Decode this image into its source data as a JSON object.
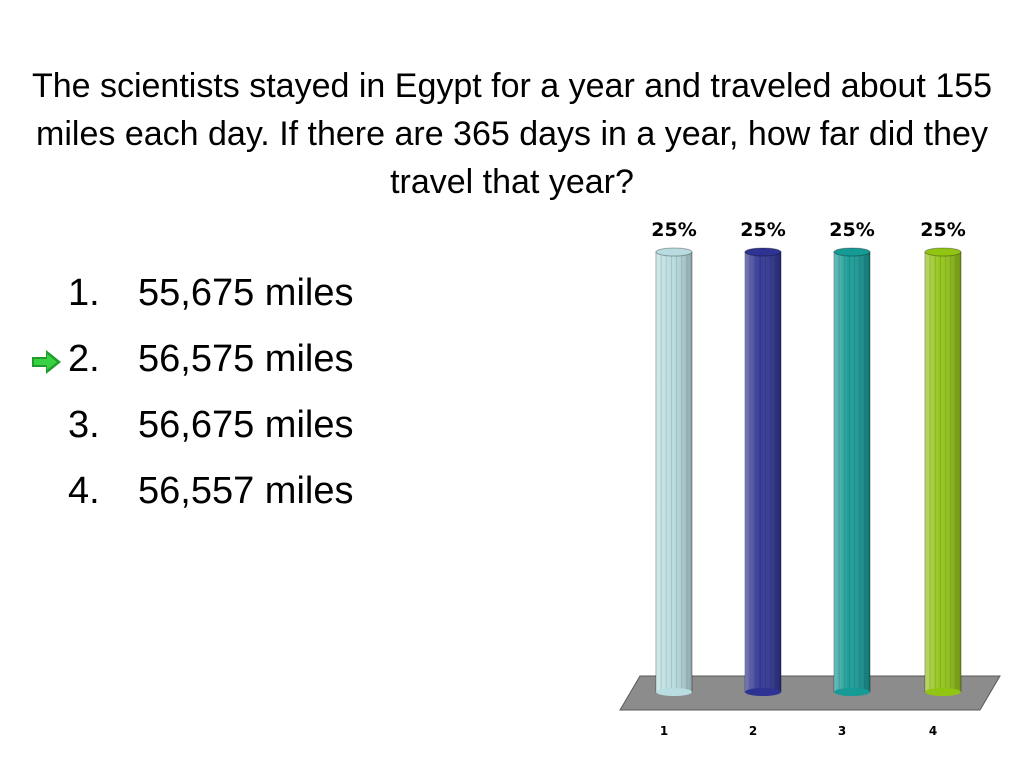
{
  "question": "The scientists stayed in Egypt for a year and traveled about 155 miles each day. If there are 365 days in a year, how far did they travel that year?",
  "answers": [
    {
      "num": "1.",
      "text": "55,675 miles"
    },
    {
      "num": "2.",
      "text": "56,575 miles"
    },
    {
      "num": "3.",
      "text": "56,675 miles"
    },
    {
      "num": "4.",
      "text": "56,557 miles"
    }
  ],
  "correct_answer_index": 1,
  "chart_data": {
    "type": "bar",
    "categories": [
      "1",
      "2",
      "3",
      "4"
    ],
    "values": [
      25,
      25,
      25,
      25
    ],
    "value_labels": [
      "25%",
      "25%",
      "25%",
      "25%"
    ],
    "ylim": [
      0,
      25
    ],
    "colors": [
      "#b8dcdf",
      "#2e3393",
      "#159a96",
      "#92c414"
    ],
    "floor_color": "#8c8c8c"
  }
}
